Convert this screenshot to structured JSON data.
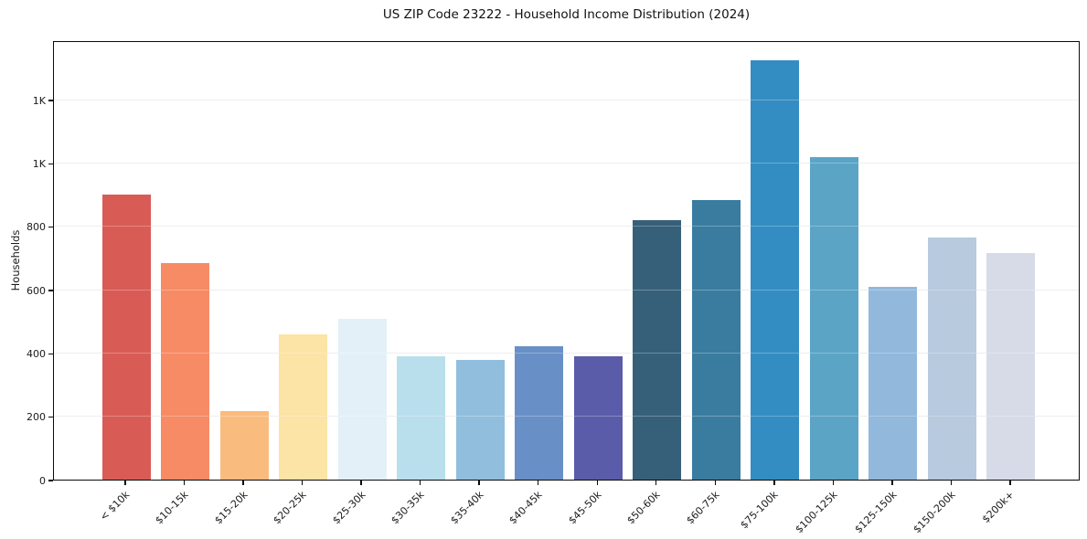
{
  "page": {
    "title": "US ZIP Code 23222 - Household Income Distribution (2024)"
  },
  "chart_data": {
    "type": "bar",
    "title": "US ZIP Code 23222 - Household Income Distribution (2024)",
    "xlabel": "",
    "ylabel": "Households",
    "categories": [
      "< $10k",
      "$10-15k",
      "$15-20k",
      "$20-25k",
      "$25-30k",
      "$30-35k",
      "$35-40k",
      "$40-45k",
      "$45-50k",
      "$50-60k",
      "$60-75k",
      "$75-100k",
      "$100-125k",
      "$125-150k",
      "$150-200k",
      "$200k+"
    ],
    "values": [
      900,
      683,
      217,
      459,
      508,
      390,
      379,
      421,
      390,
      820,
      884,
      1324,
      1019,
      609,
      766,
      717
    ],
    "bar_colors": [
      "#d95b55",
      "#f68b65",
      "#fabc7e",
      "#fce3a6",
      "#e4f0f7",
      "#b9dfed",
      "#91bedd",
      "#6890c6",
      "#5a5caa",
      "#36607a",
      "#3a7ca0",
      "#338dc2",
      "#5ba4c6",
      "#92b8dc",
      "#b7cade",
      "#d7dbe8"
    ],
    "ylim": [
      0,
      1388
    ],
    "yticks": {
      "values": [
        0,
        200,
        400,
        600,
        800,
        1000,
        1200
      ],
      "labels": [
        "0",
        "200",
        "400",
        "600",
        "800",
        "1K",
        "1K"
      ]
    },
    "grid": "horizontal",
    "gridline_color": "#e8e8e8",
    "legend": "none",
    "x_tick_rotation_deg": 45,
    "background_color": "#ffffff"
  }
}
